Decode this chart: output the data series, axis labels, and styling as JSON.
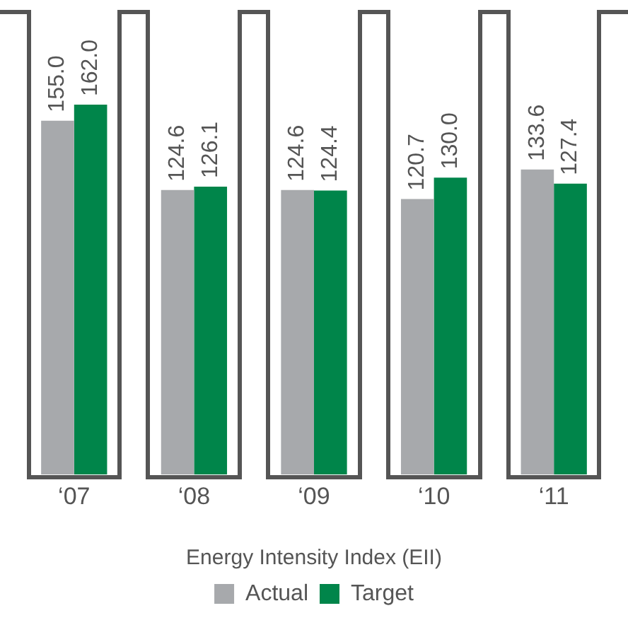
{
  "chart_data": {
    "type": "bar",
    "xlabel": "Energy Intensity Index (EII)",
    "categories": [
      "‘07",
      "‘08",
      "‘09",
      "‘10",
      "‘11"
    ],
    "series": [
      {
        "name": "Actual",
        "color": "#a7a9ac",
        "values": [
          155.0,
          124.6,
          124.6,
          120.7,
          133.6
        ],
        "value_labels": [
          "155.0",
          "124.6",
          "124.6",
          "120.7",
          "133.6"
        ]
      },
      {
        "name": "Target",
        "color": "#00854a",
        "values": [
          162.0,
          126.1,
          124.4,
          130.0,
          127.4
        ],
        "value_labels": [
          "162.0",
          "126.1",
          "124.4",
          "130.0",
          "127.4"
        ]
      }
    ],
    "legend": "bottom"
  }
}
